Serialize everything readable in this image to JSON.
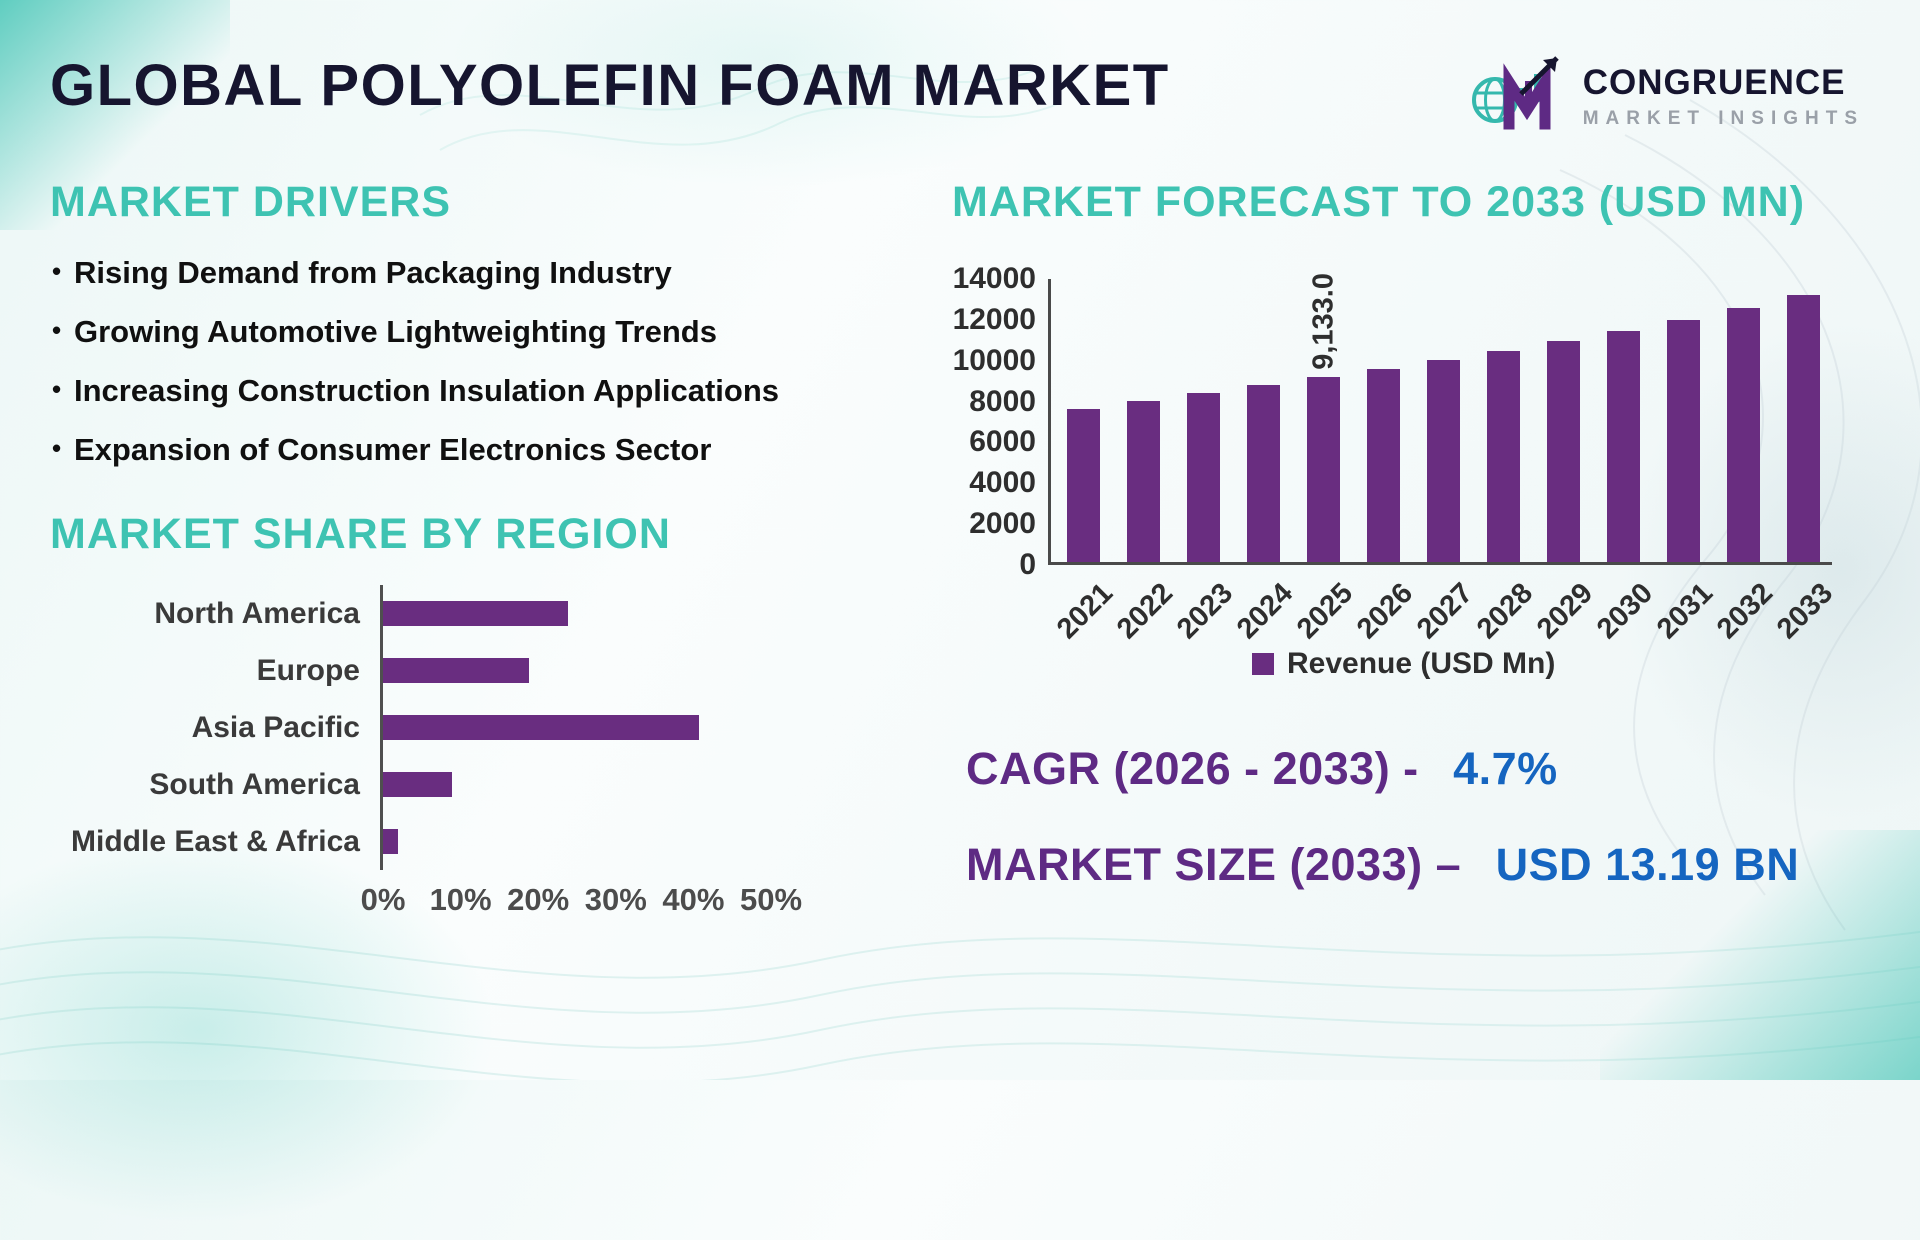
{
  "page": {
    "title": "GLOBAL POLYOLEFIN FOAM MARKET"
  },
  "logo": {
    "name": "CONGRUENCE",
    "tagline": "MARKET INSIGHTS"
  },
  "drivers": {
    "heading": "MARKET DRIVERS",
    "items": [
      "Rising Demand from Packaging Industry",
      "Growing Automotive Lightweighting Trends",
      "Increasing Construction Insulation Applications",
      "Expansion of Consumer Electronics Sector"
    ]
  },
  "stats": {
    "cagr_label": "CAGR (2026 - 2033) -",
    "cagr_value": "4.7%",
    "market_size_label": "MARKET SIZE (2033) –",
    "market_size_value": "USD 13.19 BN"
  },
  "colors": {
    "bar_purple": "#692d80",
    "heading_teal": "#3ec3b2",
    "title_navy": "#16152f",
    "accent_blue": "#1565c0",
    "stat_purple": "#5e2a84"
  },
  "chart_data": [
    {
      "type": "bar",
      "orientation": "horizontal",
      "title": "MARKET SHARE BY REGION",
      "categories": [
        "North America",
        "Europe",
        "Asia Pacific",
        "South America",
        "Middle East & Africa"
      ],
      "values": [
        24,
        19,
        41,
        9,
        2
      ],
      "unit": "%",
      "xlim": [
        0,
        50
      ],
      "xtick_labels": [
        "0%",
        "10%",
        "20%",
        "30%",
        "40%",
        "50%"
      ],
      "bar_color": "#692d80",
      "grid": false,
      "legend_position": "none"
    },
    {
      "type": "bar",
      "orientation": "vertical",
      "title": "MARKET FORECAST TO 2033 (USD MN)",
      "categories": [
        "2021",
        "2022",
        "2023",
        "2024",
        "2025",
        "2026",
        "2027",
        "2028",
        "2029",
        "2030",
        "2031",
        "2032",
        "2033"
      ],
      "values": [
        7550,
        7950,
        8350,
        8750,
        9133,
        9560,
        9990,
        10450,
        10930,
        11430,
        11950,
        12550,
        13190
      ],
      "ylabel": "",
      "xlabel": "",
      "ylim": [
        0,
        14000
      ],
      "yticks": [
        0,
        2000,
        4000,
        6000,
        8000,
        10000,
        12000,
        14000
      ],
      "legend": [
        "Revenue (USD Mn)"
      ],
      "legend_position": "bottom",
      "annotations": [
        {
          "category": "2025",
          "text": "9,133.0"
        }
      ],
      "bar_color": "#692d80",
      "grid": false
    }
  ]
}
